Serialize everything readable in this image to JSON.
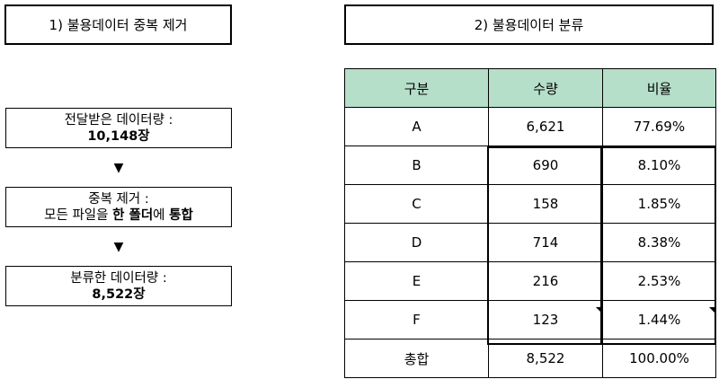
{
  "left_panel": {
    "header": "1) 불용데이터 중복 제거",
    "step1_line1": "전달받은 데이터량 :",
    "step1_value": "10,148장",
    "arrow": "▼",
    "step2_line1": "중복 제거 :",
    "step2_pre": "모든 파일을 ",
    "step2_bold1": "한 폴더",
    "step2_mid": "에 ",
    "step2_bold2": "통합",
    "step3_line1": "분류한 데이터량 :",
    "step3_value": "8,522장"
  },
  "right_panel": {
    "header": "2) 불용데이터 분류",
    "columns": [
      "구분",
      "수량",
      "비율"
    ],
    "rows": [
      [
        "A",
        "6,621",
        "77.69%"
      ],
      [
        "B",
        "690",
        "8.10%"
      ],
      [
        "C",
        "158",
        "1.85%"
      ],
      [
        "D",
        "714",
        "8.38%"
      ],
      [
        "E",
        "216",
        "2.53%"
      ],
      [
        "F",
        "123",
        "1.44%"
      ],
      [
        "총합",
        "8,522",
        "100.00%"
      ]
    ]
  }
}
